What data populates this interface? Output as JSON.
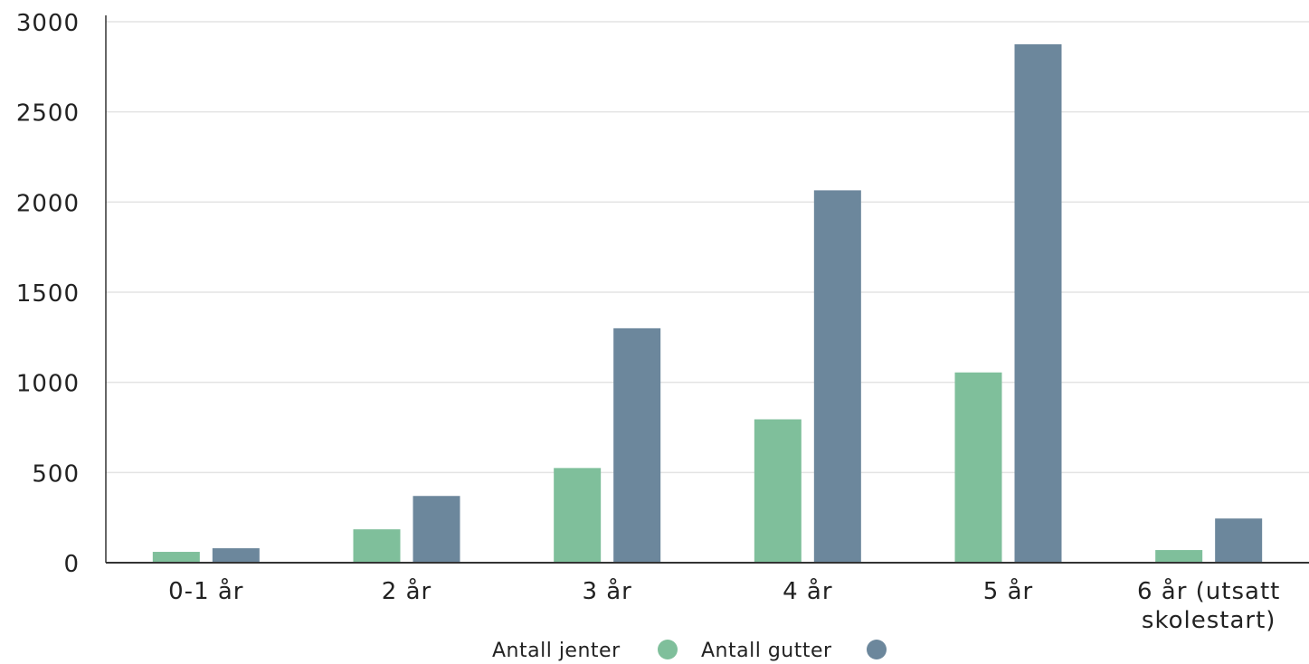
{
  "chart_data": {
    "type": "bar",
    "categories": [
      "0-1 år",
      "2 år",
      "3 år",
      "4 år",
      "5 år",
      "6 år (utsatt skolestart)"
    ],
    "series": [
      {
        "name": "Antall jenter",
        "color": "#7fbf9b",
        "values": [
          60,
          185,
          525,
          795,
          1055,
          70
        ]
      },
      {
        "name": "Antall gutter",
        "color": "#6c879c",
        "values": [
          80,
          370,
          1300,
          2065,
          2875,
          245
        ]
      }
    ],
    "title": "",
    "xlabel": "",
    "ylabel": "",
    "ylim": [
      0,
      3000
    ],
    "yticks": [
      0,
      500,
      1000,
      1500,
      2000,
      2500,
      3000
    ],
    "grid": true,
    "legend": "bottom-center"
  }
}
